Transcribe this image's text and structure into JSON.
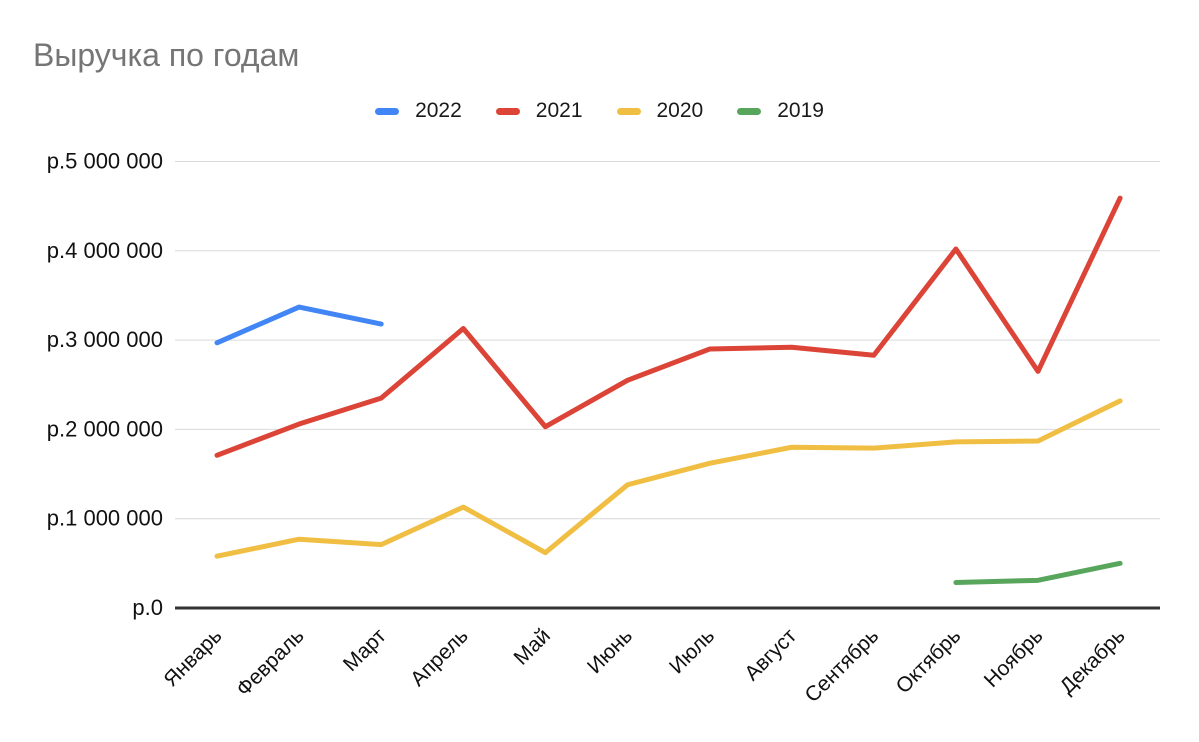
{
  "chart_data": {
    "type": "line",
    "title": "Выручка по годам",
    "categories": [
      "Январь",
      "Февраль",
      "Март",
      "Апрель",
      "Май",
      "Июнь",
      "Июль",
      "Август",
      "Сентябрь",
      "Октябрь",
      "Ноябрь",
      "Декабрь"
    ],
    "series": [
      {
        "name": "2022",
        "color": "#4285F4",
        "values": [
          2970000,
          3370000,
          3180000,
          null,
          null,
          null,
          null,
          null,
          null,
          null,
          null,
          null
        ]
      },
      {
        "name": "2021",
        "color": "#DB4437",
        "values": [
          1710000,
          2060000,
          2350000,
          3130000,
          2030000,
          2550000,
          2900000,
          2920000,
          2830000,
          4020000,
          2650000,
          4590000
        ]
      },
      {
        "name": "2020",
        "color": "#F0BE42",
        "values": [
          580000,
          770000,
          710000,
          1130000,
          620000,
          1380000,
          1620000,
          1800000,
          1790000,
          1860000,
          1870000,
          2320000
        ]
      },
      {
        "name": "2019",
        "color": "#58A55C",
        "values": [
          null,
          null,
          null,
          null,
          null,
          null,
          null,
          null,
          null,
          285000,
          310000,
          500000
        ]
      }
    ],
    "yticks": [
      {
        "value": 0,
        "label": "р.0"
      },
      {
        "value": 1000000,
        "label": "р.1 000 000"
      },
      {
        "value": 2000000,
        "label": "р.2 000 000"
      },
      {
        "value": 3000000,
        "label": "р.3 000 000"
      },
      {
        "value": 4000000,
        "label": "р.4 000 000"
      },
      {
        "value": 5000000,
        "label": "р.5 000 000"
      }
    ],
    "ylim": [
      0,
      5000000
    ],
    "xlabel": "",
    "ylabel": "",
    "grid": true,
    "legend_position": "top",
    "colors": {
      "title_text": "#757575",
      "axis_text": "#111111",
      "gridline": "#D9D9D9",
      "axis_line": "#333333"
    }
  }
}
